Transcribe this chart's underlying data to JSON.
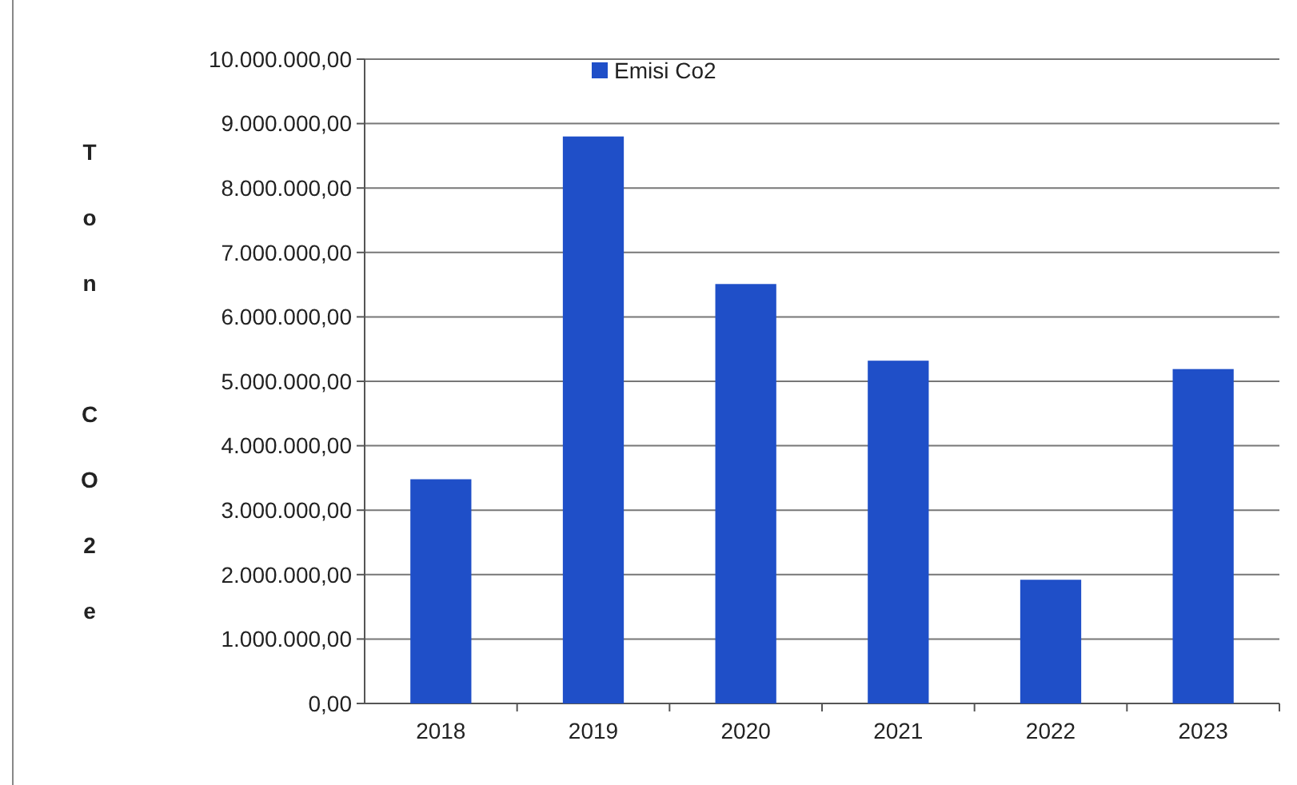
{
  "chart_data": {
    "type": "bar",
    "ylabel": "Ton CO2e",
    "categories": [
      "2018",
      "2019",
      "2020",
      "2021",
      "2022",
      "2023"
    ],
    "series": [
      {
        "name": "Emisi Co2",
        "color": "#1f4fc8",
        "values": [
          3480000,
          8800000,
          6510000,
          5320000,
          1920000,
          5190000
        ]
      }
    ],
    "ylim": [
      0,
      10000000
    ],
    "yticks": [
      {
        "value": 0,
        "label": "0,00"
      },
      {
        "value": 1000000,
        "label": "1.000.000,00"
      },
      {
        "value": 2000000,
        "label": "2.000.000,00"
      },
      {
        "value": 3000000,
        "label": "3.000.000,00"
      },
      {
        "value": 4000000,
        "label": "4.000.000,00"
      },
      {
        "value": 5000000,
        "label": "5.000.000,00"
      },
      {
        "value": 6000000,
        "label": "6.000.000,00"
      },
      {
        "value": 7000000,
        "label": "7.000.000,00"
      },
      {
        "value": 8000000,
        "label": "8.000.000,00"
      },
      {
        "value": 9000000,
        "label": "9.000.000,00"
      },
      {
        "value": 10000000,
        "label": "10.000.000,00"
      }
    ],
    "grid": "y",
    "legend": "top"
  }
}
